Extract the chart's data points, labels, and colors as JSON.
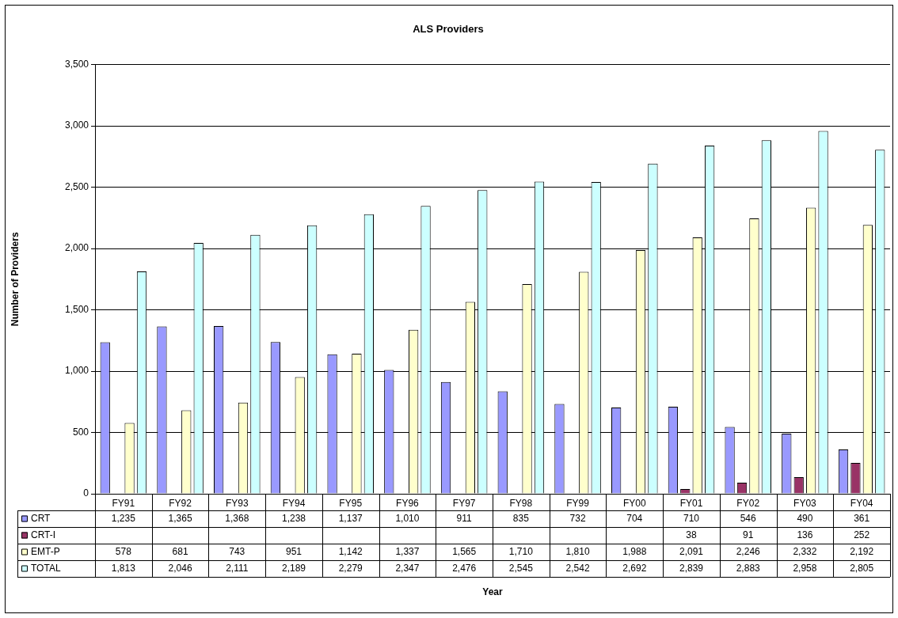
{
  "chart_data": {
    "type": "bar",
    "title": "ALS Providers",
    "ylabel": "Number of Providers",
    "annotations": [
      "Year"
    ],
    "categories": [
      "FY91",
      "FY92",
      "FY93",
      "FY94",
      "FY95",
      "FY96",
      "FY97",
      "FY98",
      "FY99",
      "FY00",
      "FY01",
      "FY02",
      "FY03",
      "FY04"
    ],
    "series": [
      {
        "name": "CRT",
        "color": "#9999ff",
        "values": [
          1235,
          1365,
          1368,
          1238,
          1137,
          1010,
          911,
          835,
          732,
          704,
          710,
          546,
          490,
          361
        ],
        "value_labels": [
          "1,235",
          "1,365",
          "1,368",
          "1,238",
          "1,137",
          "1,010",
          "911",
          "835",
          "732",
          "704",
          "710",
          "546",
          "490",
          "361"
        ]
      },
      {
        "name": "CRT-I",
        "color": "#993366",
        "values": [
          null,
          null,
          null,
          null,
          null,
          null,
          null,
          null,
          null,
          null,
          38,
          91,
          136,
          252
        ],
        "value_labels": [
          null,
          null,
          null,
          null,
          null,
          null,
          null,
          null,
          null,
          null,
          "38",
          "91",
          "136",
          "252"
        ]
      },
      {
        "name": "EMT-P",
        "color": "#ffffcc",
        "values": [
          578,
          681,
          743,
          951,
          1142,
          1337,
          1565,
          1710,
          1810,
          1988,
          2091,
          2246,
          2332,
          2192
        ],
        "value_labels": [
          "578",
          "681",
          "743",
          "951",
          "1,142",
          "1,337",
          "1,565",
          "1,710",
          "1,810",
          "1,988",
          "2,091",
          "2,246",
          "2,332",
          "2,192"
        ]
      },
      {
        "name": "TOTAL",
        "color": "#ccffff",
        "values": [
          1813,
          2046,
          2111,
          2189,
          2279,
          2347,
          2476,
          2545,
          2542,
          2692,
          2839,
          2883,
          2958,
          2805
        ],
        "value_labels": [
          "1,813",
          "2,046",
          "2,111",
          "2,189",
          "2,279",
          "2,347",
          "2,476",
          "2,545",
          "2,542",
          "2,692",
          "2,839",
          "2,883",
          "2,958",
          "2,805"
        ]
      }
    ],
    "ylim": [
      0,
      3500
    ],
    "yticks": [
      0,
      500,
      {
        "value": 1000,
        "label": "1,000"
      },
      {
        "value": 1500,
        "label": "1,500"
      },
      {
        "value": 2000,
        "label": "2,000"
      },
      {
        "value": 2500,
        "label": "2,500"
      },
      {
        "value": 3000,
        "label": "3,000"
      },
      {
        "value": 3500,
        "label": "3,500"
      }
    ],
    "grid": "y",
    "legend": "bottom left"
  }
}
